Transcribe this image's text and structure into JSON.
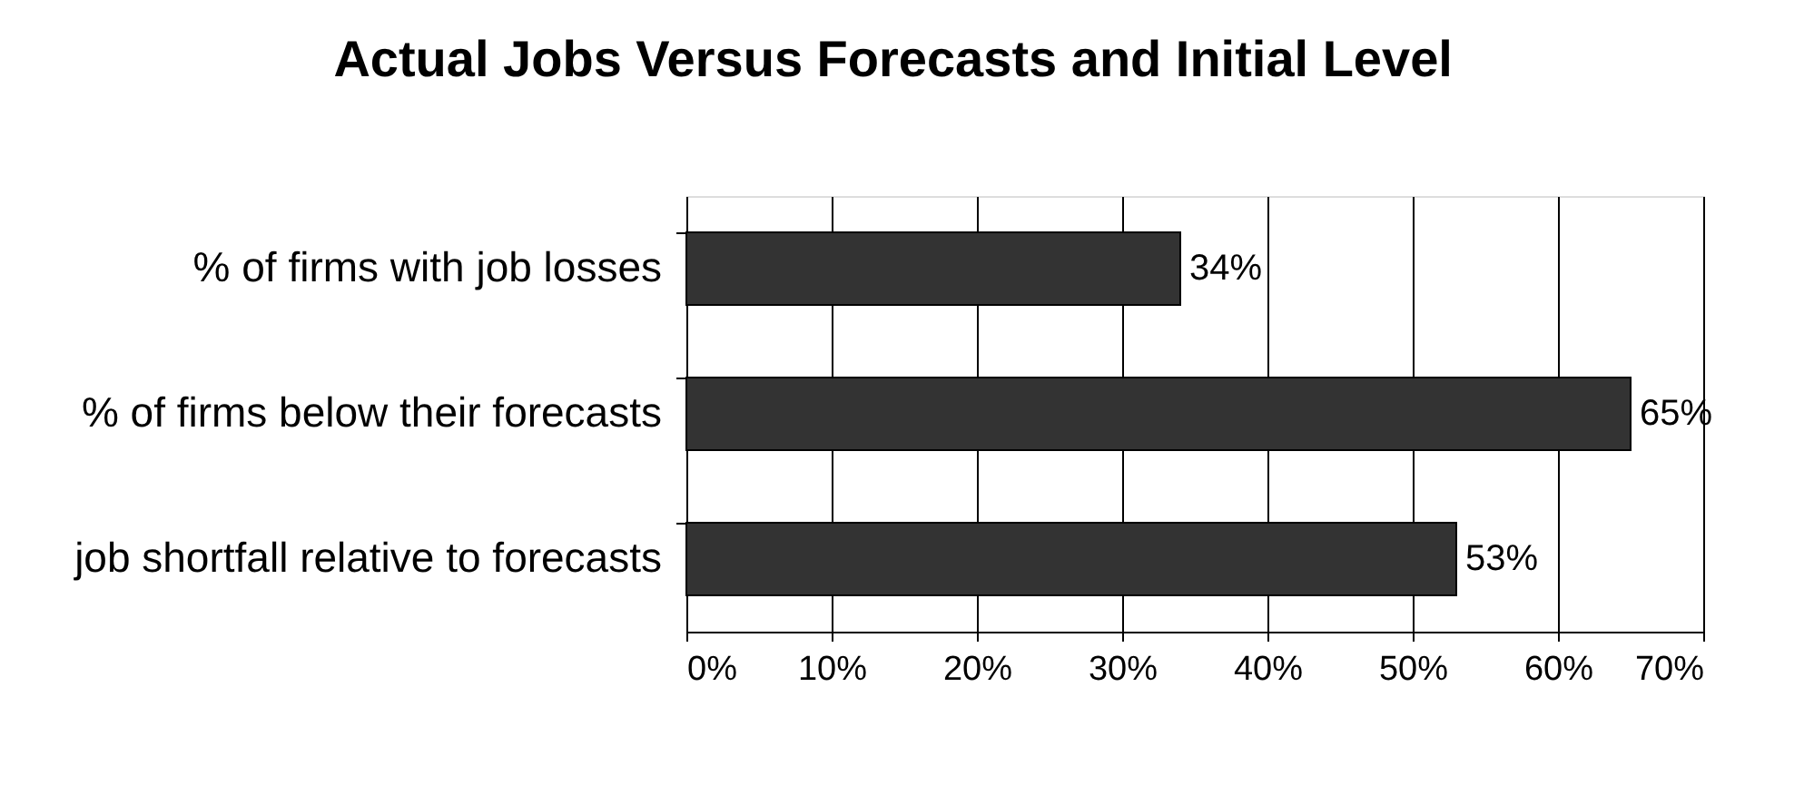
{
  "chart_data": {
    "type": "bar",
    "orientation": "horizontal",
    "title": "Actual Jobs Versus Forecasts and Initial Level",
    "categories": [
      "% of firms with job losses",
      "% of firms below their forecasts",
      "job shortfall relative to forecasts"
    ],
    "values": [
      34,
      65,
      53
    ],
    "color": "#333333",
    "value_labels": [
      "34%",
      "65%",
      "53%"
    ],
    "xlim": [
      0,
      70
    ],
    "xticks": [
      {
        "value": 0,
        "label": "0%"
      },
      {
        "value": 10,
        "label": "10%"
      },
      {
        "value": 20,
        "label": "20%"
      },
      {
        "value": 30,
        "label": "30%"
      },
      {
        "value": 40,
        "label": "40%"
      },
      {
        "value": 50,
        "label": "50%"
      },
      {
        "value": 60,
        "label": "60%"
      },
      {
        "value": 70,
        "label": "70%"
      }
    ],
    "grid": "x"
  }
}
